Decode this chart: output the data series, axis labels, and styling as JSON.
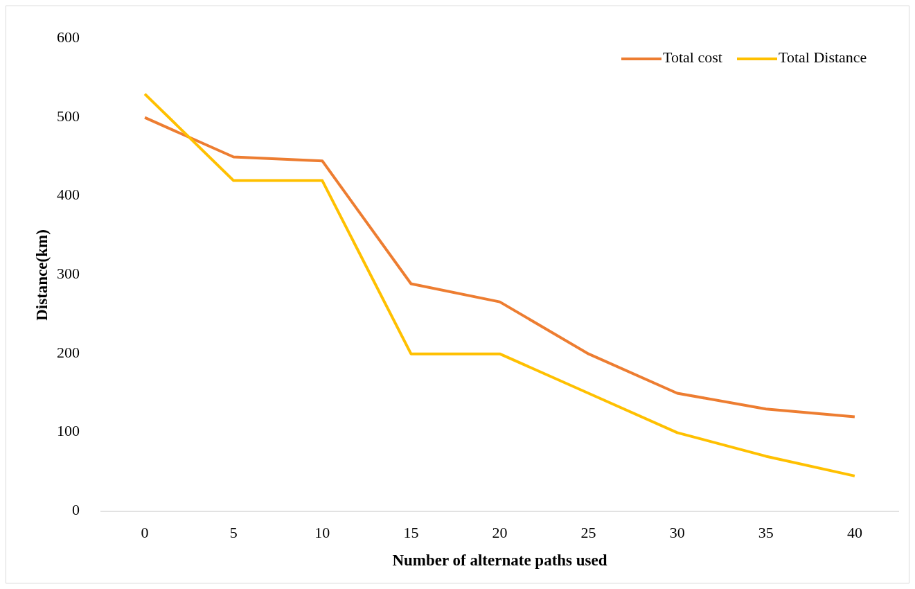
{
  "chart_data": {
    "type": "line",
    "xlabel": "Number of alternate paths used",
    "ylabel": "Distance(km)",
    "categories": [
      "0",
      "5",
      "10",
      "15",
      "20",
      "25",
      "30",
      "35",
      "40"
    ],
    "series": [
      {
        "name": "Total cost",
        "color": "#ed7d31",
        "values": [
          500,
          450,
          445,
          289,
          266,
          200,
          150,
          130,
          120
        ]
      },
      {
        "name": "Total Distance",
        "color": "#ffc000",
        "values": [
          530,
          420,
          420,
          200,
          200,
          150,
          100,
          70,
          45
        ]
      }
    ],
    "ylim": [
      0,
      600
    ],
    "yticks": [
      0,
      100,
      200,
      300,
      400,
      500,
      600
    ],
    "grid": false,
    "legend": "top right",
    "marker": "none",
    "line_style": "solid"
  }
}
